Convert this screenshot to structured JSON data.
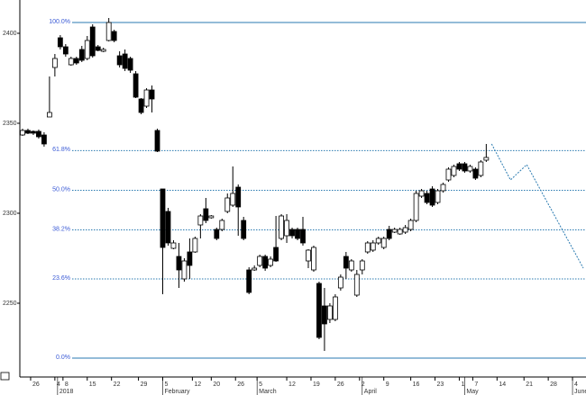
{
  "chart_data": {
    "type": "candlestick",
    "xlim": [
      0,
      105
    ],
    "ylim": [
      2209,
      2418.5
    ],
    "yticks": [
      2400,
      2350,
      2300,
      2250
    ],
    "xticks": [
      {
        "value": 2,
        "label": "26"
      },
      {
        "value": 6.5,
        "label": "4"
      },
      {
        "value": 8,
        "label": "8"
      },
      {
        "value": 12.5,
        "label": "15"
      },
      {
        "value": 17,
        "label": "22"
      },
      {
        "value": 22,
        "label": "29"
      },
      {
        "value": 26.5,
        "label": "5"
      },
      {
        "value": 32,
        "label": "12"
      },
      {
        "value": 35.5,
        "label": "20"
      },
      {
        "value": 40,
        "label": "26"
      },
      {
        "value": 44,
        "label": "5"
      },
      {
        "value": 49.5,
        "label": "12"
      },
      {
        "value": 54,
        "label": "19"
      },
      {
        "value": 58.5,
        "label": "26"
      },
      {
        "value": 63,
        "label": "2"
      },
      {
        "value": 67.5,
        "label": "9"
      },
      {
        "value": 72.5,
        "label": "16"
      },
      {
        "value": 77,
        "label": "23"
      },
      {
        "value": 81.5,
        "label": "1"
      },
      {
        "value": 84,
        "label": "7"
      },
      {
        "value": 88.5,
        "label": "14"
      },
      {
        "value": 93.5,
        "label": "21"
      },
      {
        "value": 98,
        "label": "28"
      },
      {
        "value": 102.5,
        "label": "4"
      }
    ],
    "month_ticks": [
      {
        "value": 7,
        "label": "2018"
      },
      {
        "value": 26.5,
        "label": "February"
      },
      {
        "value": 44,
        "label": "March"
      },
      {
        "value": 63.5,
        "label": "April"
      },
      {
        "value": 82.5,
        "label": "May"
      },
      {
        "value": 102.5,
        "label": "June"
      }
    ],
    "levels": [
      {
        "value": 2406,
        "label": "100.0%"
      },
      {
        "value": 2334.8,
        "label": "61.8%"
      },
      {
        "value": 2312.75,
        "label": "50.0%"
      },
      {
        "value": 2290.74,
        "label": "38.2%"
      },
      {
        "value": 2263.5,
        "label": "23.6%"
      },
      {
        "value": 2219.5,
        "label": "0.0%"
      }
    ],
    "level_color": "#2a7ab0",
    "up_color": "#ffffff",
    "down_color": "#000000",
    "x": [
      0.5,
      1.5,
      2.5,
      3.5,
      4.5,
      5.5,
      6.5,
      7.5,
      8.5,
      9.5,
      10.5,
      11.5,
      12.5,
      13.5,
      14.5,
      15.5,
      16.5,
      17.5,
      18.5,
      19.5,
      20.5,
      21.5,
      22.5,
      23.5,
      24.5,
      25.5,
      26.5,
      27.5,
      28.5,
      29.5,
      30.5,
      31.5,
      32.5,
      33.5,
      34.5,
      35.5,
      36.5,
      37.5,
      38.5,
      39.5,
      40.5,
      41.5,
      42.5,
      43.5,
      44.5,
      45.5,
      46.5,
      47.5,
      48.5,
      49.5,
      50.5,
      51.5,
      52.5,
      53.5,
      54.5,
      55.5,
      56.5,
      57.5,
      58.5,
      59.5,
      60.5,
      61.5,
      62.5,
      63.5,
      64.5,
      65.5,
      66.5,
      67.5,
      68.5,
      69.5,
      70.5,
      71.5,
      72.5,
      73.5,
      74.5,
      75.5,
      76.5,
      77.5,
      78.5,
      79.5,
      80.5,
      81.5,
      82.5,
      83.5,
      84.5,
      85.5,
      86.5
    ],
    "open": [
      2343.5,
      2346,
      2345.5,
      2345.5,
      2343.5,
      2353.5,
      2381,
      2397.5,
      2392.5,
      2382.5,
      2386,
      2391,
      2386,
      2403.5,
      2392.5,
      2390,
      2396,
      2401,
      2387.5,
      2388.5,
      2386,
      2377.5,
      2363.5,
      2359.5,
      2368.5,
      2346,
      2313.5,
      2301,
      2280.5,
      2276,
      2263.5,
      2278.5,
      2278.5,
      2293.5,
      2302.5,
      2297.5,
      2291,
      2291,
      2301,
      2304.5,
      2314.5,
      2296,
      2268.5,
      2268.5,
      2271,
      2276,
      2271,
      2281,
      2286,
      2287.5,
      2291,
      2291,
      2291,
      2273.5,
      2268.5,
      2261,
      2248.5,
      2241,
      2241,
      2258.5,
      2276,
      2268.5,
      2254.5,
      2268.5,
      2278.5,
      2279.5,
      2283.5,
      2281,
      2291,
      2289.5,
      2288.5,
      2289.5,
      2291,
      2296,
      2309.5,
      2311,
      2313.5,
      2306,
      2312.5,
      2318.5,
      2321,
      2327.5,
      2327.5,
      2323.5,
      2324.5,
      2321,
      2329.5
    ],
    "high": [
      2347,
      2347,
      2346,
      2346.5,
      2345,
      2376,
      2388.5,
      2399,
      2394,
      2387,
      2387,
      2393,
      2398.5,
      2405,
      2393.5,
      2392,
      2408.5,
      2402,
      2390,
      2391,
      2387,
      2379,
      2364,
      2369.5,
      2371,
      2347,
      2313.5,
      2303,
      2285,
      2283.5,
      2275,
      2286,
      2287,
      2299.5,
      2308.5,
      2299,
      2292,
      2297,
      2311,
      2326,
      2316,
      2298,
      2270,
      2271,
      2277,
      2277,
      2276,
      2298.5,
      2299.5,
      2299.5,
      2292,
      2292,
      2298,
      2280,
      2282,
      2262,
      2258.5,
      2250,
      2255,
      2266,
      2278.5,
      2274.5,
      2268.5,
      2274.5,
      2284.5,
      2285,
      2287,
      2287,
      2293,
      2292,
      2292,
      2293.5,
      2297,
      2312.5,
      2313.5,
      2312.5,
      2315,
      2313.5,
      2317,
      2325.5,
      2327,
      2328.5,
      2328.5,
      2327,
      2325.5,
      2329.5,
      2338.5
    ],
    "low": [
      2343,
      2344,
      2343.5,
      2341.5,
      2337,
      2353.5,
      2376,
      2391,
      2387,
      2382,
      2382.5,
      2384,
      2385,
      2386.5,
      2390,
      2389.5,
      2395.5,
      2395,
      2381,
      2379,
      2378,
      2364,
      2355,
      2358.5,
      2356,
      2334,
      2255,
      2282,
      2280,
      2258.5,
      2262,
      2263.5,
      2278,
      2286,
      2294.5,
      2297,
      2285,
      2290,
      2300,
      2303.5,
      2287.5,
      2285,
      2255,
      2268,
      2270,
      2268,
      2270,
      2273,
      2285,
      2283.5,
      2286,
      2285,
      2282,
      2269.5,
      2267.5,
      2230,
      2223.5,
      2239,
      2240,
      2257,
      2263.5,
      2267.5,
      2253.5,
      2266,
      2277.5,
      2278.5,
      2282.5,
      2280,
      2285,
      2289,
      2288,
      2288.5,
      2290,
      2295,
      2308.5,
      2305,
      2303.5,
      2305,
      2311.5,
      2317.5,
      2320,
      2323.5,
      2322.5,
      2322.5,
      2318.5,
      2320,
      2328.5
    ],
    "close": [
      2346,
      2344.5,
      2344.5,
      2342.5,
      2338.5,
      2356,
      2386,
      2392.5,
      2388.5,
      2386,
      2383.5,
      2385,
      2396,
      2387.5,
      2390.5,
      2391,
      2406,
      2396,
      2382.5,
      2380.5,
      2379.5,
      2364.5,
      2356,
      2368.5,
      2363.5,
      2334.5,
      2281,
      2283.5,
      2283.5,
      2268.5,
      2273.5,
      2271,
      2286,
      2298.5,
      2296,
      2298.5,
      2286,
      2296,
      2308.5,
      2311,
      2303.5,
      2286,
      2256,
      2269.5,
      2276,
      2269.5,
      2274.5,
      2273.5,
      2298.5,
      2296,
      2287.5,
      2286,
      2283.5,
      2279.5,
      2281,
      2231,
      2238.5,
      2248.5,
      2253.5,
      2264.5,
      2269.5,
      2273.5,
      2266,
      2273.5,
      2283.5,
      2283.5,
      2286,
      2286,
      2286,
      2291,
      2291,
      2292,
      2296,
      2311,
      2312.5,
      2306,
      2304.5,
      2312.5,
      2316,
      2324.5,
      2326,
      2324.5,
      2323.5,
      2326,
      2319.5,
      2328.5,
      2331
    ],
    "projection": {
      "x": [
        87.5,
        91,
        94,
        104.5
      ],
      "values": [
        2338.5,
        2318.5,
        2327,
        2269.5
      ],
      "color": "#2a7ab0"
    }
  }
}
